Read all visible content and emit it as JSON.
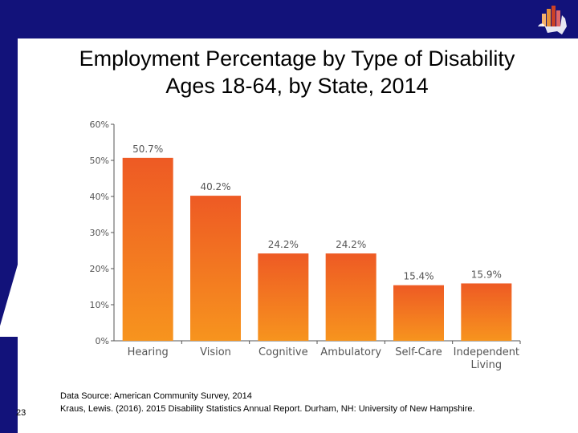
{
  "slide": {
    "title_line1": "Employment Percentage by Type of Disability",
    "title_line2": "Ages 18-64, by State, 2014",
    "slide_number": "23",
    "source_line1": "Data Source: American Community Survey, 2014",
    "source_line2": "Kraus, Lewis. (2016). 2015 Disability Statistics Annual Report. Durham, NH: University of New Hampshire."
  },
  "colors": {
    "band": "#12127a",
    "bar_top": "#ee5a24",
    "bar_bottom": "#f7941e",
    "axis": "#555555",
    "label": "#555555"
  },
  "chart_data": {
    "type": "bar",
    "categories": [
      [
        "Hearing"
      ],
      [
        "Vision"
      ],
      [
        "Cognitive"
      ],
      [
        "Ambulatory"
      ],
      [
        "Self-Care"
      ],
      [
        "Independent",
        "Living"
      ]
    ],
    "values": [
      50.7,
      40.2,
      24.2,
      24.2,
      15.4,
      15.9
    ],
    "value_labels": [
      "50.7%",
      "40.2%",
      "24.2%",
      "24.2%",
      "15.4%",
      "15.9%"
    ],
    "yticks": [
      0,
      10,
      20,
      30,
      40,
      50,
      60
    ],
    "ytick_labels": [
      "0%",
      "10%",
      "20%",
      "30%",
      "40%",
      "50%",
      "60%"
    ],
    "ylim": [
      0,
      60
    ],
    "title": "Employment Percentage by Type of Disability Ages 18-64, by State, 2014",
    "xlabel": "",
    "ylabel": "",
    "grid": false
  }
}
